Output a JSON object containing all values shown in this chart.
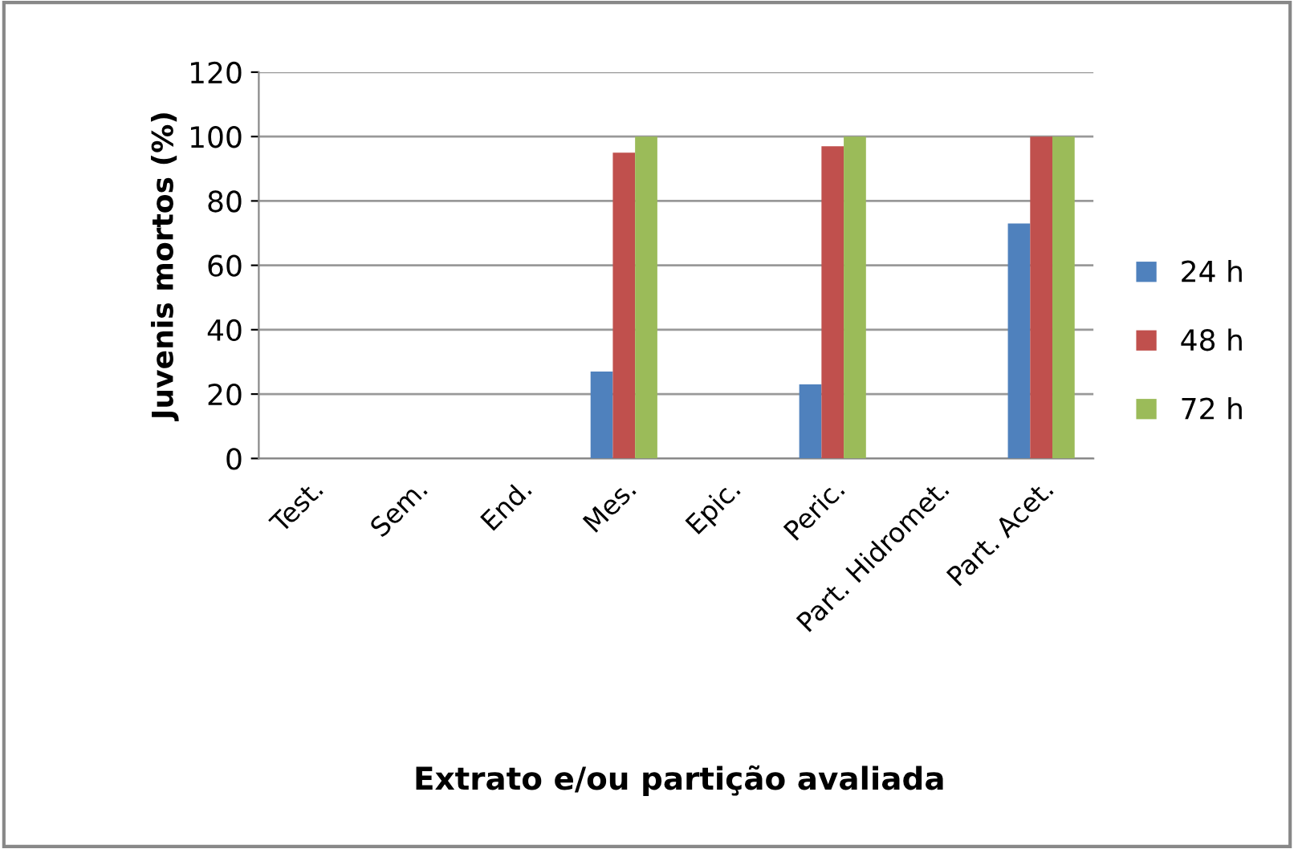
{
  "chart_data": {
    "type": "bar",
    "xlabel": "Extrato e/ou partição avaliada",
    "ylabel": "Juvenis mortos (%)",
    "categories": [
      "Test.",
      "Sem.",
      "End.",
      "Mes.",
      "Epic.",
      "Peric.",
      "Part. Hidromet.",
      "Part. Acet."
    ],
    "series": [
      {
        "name": "24 h",
        "color": "#4f81bd",
        "values": [
          0,
          0,
          0,
          27,
          0,
          23,
          0,
          73
        ]
      },
      {
        "name": "48 h",
        "color": "#c0504d",
        "values": [
          0,
          0,
          0,
          95,
          0,
          97,
          0,
          100
        ]
      },
      {
        "name": "72 h",
        "color": "#9bbb59",
        "values": [
          0,
          0,
          0,
          100,
          0,
          100,
          0,
          100
        ]
      }
    ],
    "ylim": [
      0,
      120
    ],
    "yticks": [
      0,
      20,
      40,
      60,
      80,
      100,
      120
    ],
    "grid": "y",
    "legend": "right"
  }
}
